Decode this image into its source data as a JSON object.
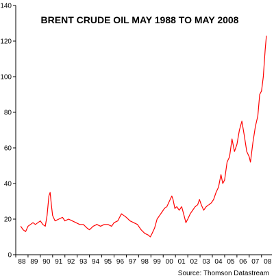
{
  "chart_data": {
    "type": "line",
    "title": "BRENT CRUDE OIL MAY 1988 TO MAY 2008",
    "xlabel": "",
    "ylabel": "",
    "source": "Source: Thomson Datastream",
    "ylim": [
      0,
      140
    ],
    "yticks": [
      "0",
      "20",
      "40",
      "60",
      "80",
      "100",
      "120",
      "140"
    ],
    "xticks": [
      "88",
      "89",
      "90",
      "91",
      "92",
      "93",
      "94",
      "95",
      "96",
      "97",
      "98",
      "99",
      "00",
      "01",
      "02",
      "03",
      "04",
      "05",
      "06",
      "07",
      "08"
    ],
    "xlim": [
      1988.0,
      2008.85
    ],
    "grid": false,
    "line_color": "#ff0000",
    "series": [
      {
        "x": [
          1988.4,
          1988.6,
          1988.8,
          1989.0,
          1989.2,
          1989.4,
          1989.6,
          1989.8,
          1990.0,
          1990.2,
          1990.4,
          1990.55,
          1990.7,
          1990.8,
          1990.9,
          1991.0,
          1991.2,
          1991.5,
          1991.8,
          1992.0,
          1992.3,
          1992.6,
          1992.9,
          1993.2,
          1993.5,
          1993.8,
          1994.0,
          1994.3,
          1994.6,
          1994.9,
          1995.2,
          1995.5,
          1995.8,
          1996.0,
          1996.3,
          1996.6,
          1996.8,
          1997.0,
          1997.3,
          1997.6,
          1997.9,
          1998.2,
          1998.5,
          1998.8,
          1998.95,
          1999.1,
          1999.3,
          1999.5,
          1999.7,
          1999.9,
          2000.1,
          2000.3,
          2000.5,
          2000.7,
          2000.8,
          2000.95,
          2001.1,
          2001.3,
          2001.5,
          2001.7,
          2001.85,
          2002.0,
          2002.2,
          2002.4,
          2002.6,
          2002.8,
          2002.95,
          2003.1,
          2003.3,
          2003.5,
          2003.7,
          2003.9,
          2004.1,
          2004.3,
          2004.5,
          2004.7,
          2004.85,
          2005.0,
          2005.2,
          2005.4,
          2005.6,
          2005.8,
          2006.0,
          2006.2,
          2006.4,
          2006.6,
          2006.8,
          2007.0,
          2007.1,
          2007.3,
          2007.5,
          2007.7,
          2007.85,
          2008.0,
          2008.15,
          2008.3,
          2008.4
        ],
        "values": [
          16,
          14,
          13,
          16,
          17,
          18,
          17,
          18,
          19,
          17,
          16,
          22,
          33,
          35,
          28,
          22,
          19,
          20,
          21,
          19,
          20,
          19,
          18,
          17,
          17,
          15,
          14,
          16,
          17,
          16,
          17,
          17,
          16,
          18,
          19,
          23,
          22,
          21,
          19,
          18,
          17,
          14,
          12,
          11,
          10,
          12,
          15,
          20,
          22,
          24,
          26,
          27,
          30,
          33,
          31,
          26,
          27,
          25,
          27,
          22,
          18,
          20,
          23,
          25,
          27,
          28,
          31,
          28,
          25,
          27,
          28,
          29,
          31,
          35,
          38,
          45,
          40,
          42,
          52,
          55,
          65,
          58,
          62,
          70,
          75,
          67,
          58,
          55,
          52,
          63,
          72,
          78,
          90,
          92,
          100,
          115,
          123
        ]
      }
    ]
  }
}
